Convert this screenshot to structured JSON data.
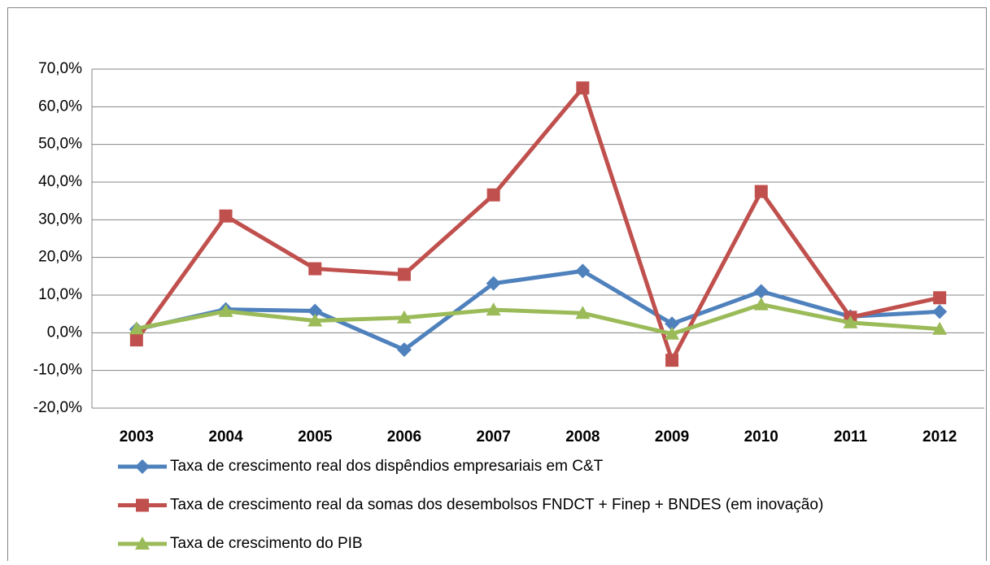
{
  "chart_data": {
    "type": "line",
    "categories": [
      "2003",
      "2004",
      "2005",
      "2006",
      "2007",
      "2008",
      "2009",
      "2010",
      "2011",
      "2012"
    ],
    "series": [
      {
        "name": "Taxa de crescimento real dos dispêndios empresariais em C&T",
        "color": "#4f81bd",
        "marker": "diamond",
        "values": [
          0.9,
          6.2,
          5.8,
          -4.5,
          13.1,
          16.4,
          2.4,
          11.0,
          4.3,
          5.6
        ]
      },
      {
        "name": "Taxa de crescimento real da somas dos desembolsos FNDCT + Finep + BNDES (em inovação)",
        "color": "#c0504d",
        "marker": "square",
        "values": [
          -1.9,
          31.0,
          17.0,
          15.5,
          36.6,
          65.0,
          -7.3,
          37.5,
          4.1,
          9.3
        ]
      },
      {
        "name": "Taxa de crescimento do PIB",
        "color": "#9bbb59",
        "marker": "triangle",
        "values": [
          1.1,
          5.7,
          3.2,
          4.0,
          6.1,
          5.2,
          -0.3,
          7.5,
          2.7,
          1.0
        ]
      }
    ],
    "ylim": [
      -20,
      70
    ],
    "yticks": [
      {
        "value": -20,
        "label": "-20,0%"
      },
      {
        "value": -10,
        "label": "-10,0%"
      },
      {
        "value": 0,
        "label": "0,0%"
      },
      {
        "value": 10,
        "label": "10,0%"
      },
      {
        "value": 20,
        "label": "20,0%"
      },
      {
        "value": 30,
        "label": "30,0%"
      },
      {
        "value": 40,
        "label": "40,0%"
      },
      {
        "value": 50,
        "label": "50,0%"
      },
      {
        "value": 60,
        "label": "60,0%"
      },
      {
        "value": 70,
        "label": "70,0%"
      }
    ],
    "grid": true,
    "legend": "bottom"
  }
}
